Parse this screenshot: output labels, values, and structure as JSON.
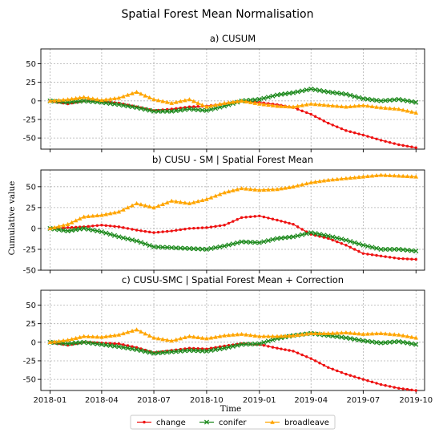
{
  "title": "Spatial Forest Mean Normalisation",
  "xlabel": "Time",
  "ylabel": "Cumulative value",
  "series_styles": [
    {
      "name": "change",
      "color": "#ee1111",
      "marker": "dot"
    },
    {
      "name": "conifer",
      "color": "#1e8a1e",
      "marker": "x"
    },
    {
      "name": "broadleave",
      "color": "#ffa500",
      "marker": "tri"
    }
  ],
  "legend": {
    "placement": "bottom-center",
    "labels": [
      "change",
      "conifer",
      "broadleave"
    ]
  },
  "x_tick_labels": [
    "2018-01",
    "2018-04",
    "2018-07",
    "2018-10",
    "2019-01",
    "2019-04",
    "2019-07",
    "2019-10"
  ],
  "chart_data": [
    {
      "type": "line",
      "title": "a) CUSUM",
      "xlabel": "",
      "ylabel": "",
      "xlim": [
        "2017-12-16",
        "2019-10-16"
      ],
      "ylim": [
        -65,
        70
      ],
      "yticks": [
        50,
        25,
        0,
        -25,
        -50
      ],
      "grid": true,
      "x": [
        "2018-01",
        "2018-02",
        "2018-03",
        "2018-04",
        "2018-05",
        "2018-06",
        "2018-07",
        "2018-08",
        "2018-09",
        "2018-10",
        "2018-11",
        "2018-12",
        "2019-01",
        "2019-02",
        "2019-03",
        "2019-04",
        "2019-05",
        "2019-06",
        "2019-07",
        "2019-08",
        "2019-09",
        "2019-10"
      ],
      "series": [
        {
          "name": "change",
          "values": [
            0,
            -4,
            0,
            -1,
            -3,
            -8,
            -13,
            -11,
            -8,
            -7,
            -4,
            0,
            -2,
            -5,
            -9,
            -18,
            -30,
            -40,
            -46,
            -53,
            -59,
            -63
          ]
        },
        {
          "name": "conifer",
          "values": [
            0,
            -2,
            0,
            -2,
            -5,
            -9,
            -14,
            -14,
            -11,
            -13,
            -7,
            0,
            2,
            8,
            11,
            16,
            12,
            9,
            3,
            0,
            2,
            -2
          ]
        },
        {
          "name": "broadleave",
          "values": [
            0,
            2,
            5,
            1,
            4,
            12,
            2,
            -3,
            2,
            -8,
            -3,
            0,
            -4,
            -7,
            -8,
            -4,
            -6,
            -8,
            -6,
            -9,
            -11,
            -16
          ]
        }
      ]
    },
    {
      "type": "line",
      "title": "b) CUSU - SM | Spatial Forest Mean",
      "xlabel": "",
      "ylabel": "Cumulative value",
      "xlim": [
        "2017-12-16",
        "2019-10-16"
      ],
      "ylim": [
        -50,
        70
      ],
      "yticks": [
        50,
        25,
        0,
        -25,
        -50
      ],
      "grid": true,
      "x": [
        "2018-01",
        "2018-02",
        "2018-03",
        "2018-04",
        "2018-05",
        "2018-06",
        "2018-07",
        "2018-08",
        "2018-09",
        "2018-10",
        "2018-11",
        "2018-12",
        "2019-01",
        "2019-02",
        "2019-03",
        "2019-04",
        "2019-05",
        "2019-06",
        "2019-07",
        "2019-08",
        "2019-09",
        "2019-10"
      ],
      "series": [
        {
          "name": "change",
          "values": [
            0,
            1,
            2,
            4,
            2,
            -2,
            -5,
            -3,
            0,
            1,
            4,
            13,
            15,
            10,
            5,
            -7,
            -12,
            -20,
            -30,
            -33,
            -36,
            -37
          ]
        },
        {
          "name": "conifer",
          "values": [
            0,
            -3,
            0,
            -4,
            -10,
            -15,
            -22,
            -23,
            -24,
            -25,
            -21,
            -16,
            -17,
            -12,
            -10,
            -5,
            -9,
            -14,
            -20,
            -25,
            -25,
            -27
          ]
        },
        {
          "name": "broadleave",
          "values": [
            0,
            5,
            14,
            16,
            20,
            30,
            25,
            33,
            30,
            35,
            43,
            48,
            46,
            47,
            50,
            55,
            58,
            60,
            62,
            64,
            63,
            62
          ]
        }
      ]
    },
    {
      "type": "line",
      "title": "c) CUSU-SMC | Spatial Forest Mean + Correction",
      "xlabel": "Time",
      "ylabel": "",
      "xlim": [
        "2017-12-16",
        "2019-10-16"
      ],
      "ylim": [
        -65,
        70
      ],
      "yticks": [
        50,
        25,
        0,
        -25,
        -50
      ],
      "grid": true,
      "x": [
        "2018-01",
        "2018-02",
        "2018-03",
        "2018-04",
        "2018-05",
        "2018-06",
        "2018-07",
        "2018-08",
        "2018-09",
        "2018-10",
        "2018-11",
        "2018-12",
        "2019-01",
        "2019-02",
        "2019-03",
        "2019-04",
        "2019-05",
        "2019-06",
        "2019-07",
        "2019-08",
        "2019-09",
        "2019-10"
      ],
      "series": [
        {
          "name": "change",
          "values": [
            0,
            -4,
            0,
            -1,
            -2,
            -7,
            -14,
            -11,
            -8,
            -9,
            -5,
            -2,
            -3,
            -8,
            -12,
            -22,
            -34,
            -43,
            -50,
            -57,
            -62,
            -65
          ]
        },
        {
          "name": "conifer",
          "values": [
            0,
            -2,
            0,
            -3,
            -6,
            -10,
            -15,
            -13,
            -11,
            -12,
            -8,
            -3,
            -2,
            5,
            9,
            12,
            9,
            6,
            2,
            -1,
            1,
            -3
          ]
        },
        {
          "name": "broadleave",
          "values": [
            0,
            3,
            8,
            7,
            10,
            17,
            6,
            2,
            8,
            5,
            9,
            11,
            8,
            8,
            9,
            12,
            12,
            13,
            11,
            12,
            10,
            6
          ]
        }
      ]
    }
  ]
}
